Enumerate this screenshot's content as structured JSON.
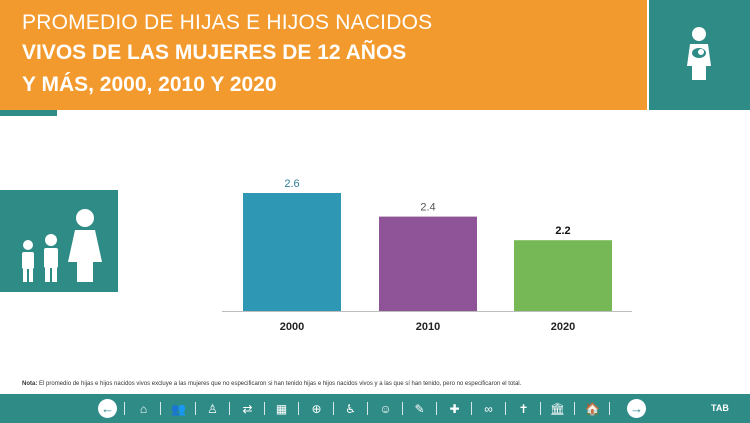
{
  "header": {
    "title_line1": "PROMEDIO DE HIJAS E HIJOS NACIDOS",
    "title_line2": "VIVOS DE LAS MUJERES DE 12 AÑOS",
    "title_line3": "Y MÁS, 2000, 2010 Y 2020",
    "icon": "woman-with-baby-icon"
  },
  "side_panel": {
    "icon": "family-icon"
  },
  "chart_data": {
    "type": "bar",
    "title": "PROMEDIO DE HIJAS E HIJOS NACIDOS VIVOS DE LAS MUJERES DE 12 AÑOS Y MÁS, 2000, 2010 Y 2020",
    "categories": [
      "2000",
      "2010",
      "2020"
    ],
    "values": [
      2.6,
      2.4,
      2.2
    ],
    "value_labels": [
      "2.6",
      "2.4",
      "2.2"
    ],
    "colors": [
      "#2e97b4",
      "#8f5497",
      "#76b855"
    ],
    "label_colors": [
      "#2e7e96",
      "#555555",
      "#111111"
    ],
    "ylim": [
      1.6,
      2.7
    ],
    "xlabel": "",
    "ylabel": "",
    "grid": false
  },
  "note": {
    "prefix": "Nota:",
    "text": "El promedio de hijas e hijos nacidos vivos excluye a las mujeres que no especificaron si han tenido hijas e hijos nacidos vivos y a las que sí han tenido, pero no especificaron el total."
  },
  "footer": {
    "tab_label": "TAB",
    "back_glyph": "←",
    "forward_glyph": "→",
    "nav_icons": [
      {
        "name": "building-icon",
        "glyph": "⌂"
      },
      {
        "name": "people-group-icon",
        "glyph": "👥"
      },
      {
        "name": "person-icon",
        "glyph": "♙"
      },
      {
        "name": "migration-icon",
        "glyph": "⇄"
      },
      {
        "name": "map-icon",
        "glyph": "▦"
      },
      {
        "name": "target-icon",
        "glyph": "⊕"
      },
      {
        "name": "wheelchair-icon",
        "glyph": "♿"
      },
      {
        "name": "children-icon",
        "glyph": "☺"
      },
      {
        "name": "education-icon",
        "glyph": "✎"
      },
      {
        "name": "health-icon",
        "glyph": "✚"
      },
      {
        "name": "rings-icon",
        "glyph": "∞"
      },
      {
        "name": "religion-icon",
        "glyph": "✝"
      },
      {
        "name": "government-icon",
        "glyph": "🏛"
      },
      {
        "name": "home-icon",
        "glyph": "🏠"
      }
    ]
  }
}
